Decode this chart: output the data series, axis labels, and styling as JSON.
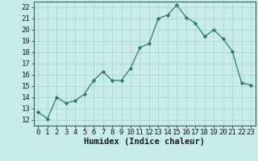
{
  "x": [
    0,
    1,
    2,
    3,
    4,
    5,
    6,
    7,
    8,
    9,
    10,
    11,
    12,
    13,
    14,
    15,
    16,
    17,
    18,
    19,
    20,
    21,
    22,
    23
  ],
  "y": [
    12.7,
    12.1,
    14.0,
    13.5,
    13.7,
    14.3,
    15.5,
    16.3,
    15.5,
    15.5,
    16.6,
    18.4,
    18.8,
    21.0,
    21.3,
    22.2,
    21.1,
    20.6,
    19.4,
    20.0,
    19.2,
    18.1,
    15.3,
    15.1
  ],
  "line_color": "#2d7a6e",
  "marker": "D",
  "marker_size": 2.2,
  "bg_color": "#c8ecec",
  "grid_color": "#b0d4d4",
  "xlabel": "Humidex (Indice chaleur)",
  "ylim": [
    11.5,
    22.5
  ],
  "xlim": [
    -0.5,
    23.5
  ],
  "yticks": [
    12,
    13,
    14,
    15,
    16,
    17,
    18,
    19,
    20,
    21,
    22
  ],
  "xticks": [
    0,
    1,
    2,
    3,
    4,
    5,
    6,
    7,
    8,
    9,
    10,
    11,
    12,
    13,
    14,
    15,
    16,
    17,
    18,
    19,
    20,
    21,
    22,
    23
  ],
  "tick_label_fontsize": 6.5,
  "xlabel_fontsize": 7.5
}
